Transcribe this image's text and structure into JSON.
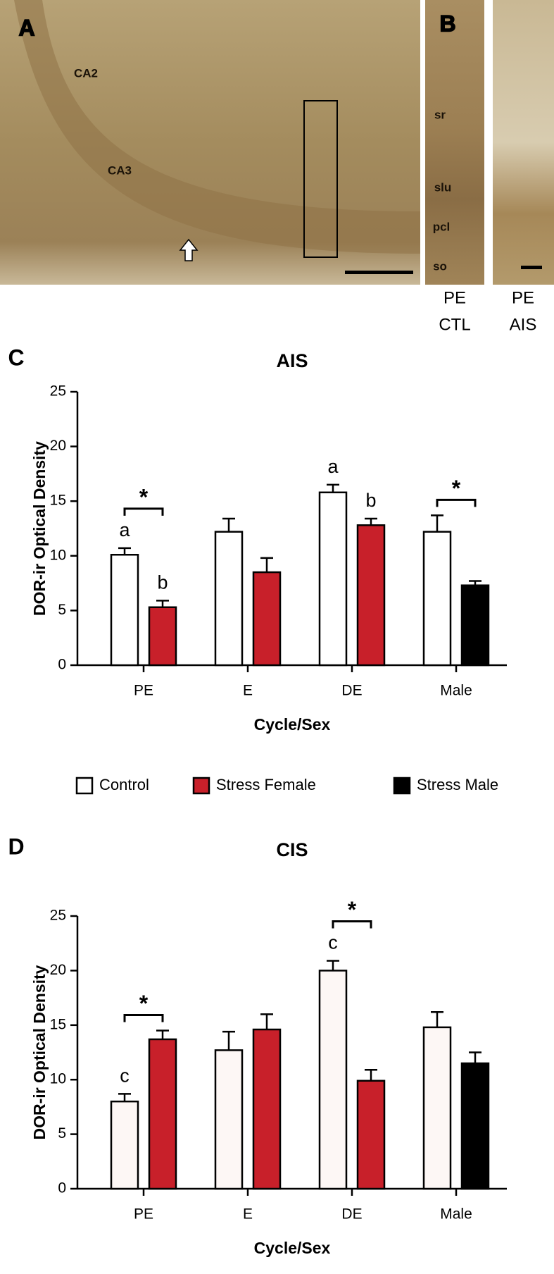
{
  "micrographs": {
    "panel_a": {
      "label": "A",
      "regions": [
        "CA2",
        "CA3"
      ]
    },
    "panel_b": {
      "label": "B",
      "layers": [
        "sr",
        "slu",
        "pcl",
        "so"
      ],
      "captions": [
        [
          "PE",
          "CTL"
        ],
        [
          "PE",
          "AIS"
        ]
      ]
    }
  },
  "chart_data": [
    {
      "type": "bar",
      "panel": "C",
      "title": "AIS",
      "xlabel": "Cycle/Sex",
      "ylabel": "DOR-ir Optical Density",
      "categories": [
        "PE",
        "E",
        "DE",
        "Male"
      ],
      "series": [
        {
          "name": "Control",
          "color": "#ffffff",
          "values": [
            10.1,
            12.2,
            15.8,
            12.2
          ],
          "errors": [
            0.6,
            1.2,
            0.7,
            1.5
          ],
          "annotations": [
            "a",
            null,
            "a",
            null
          ]
        },
        {
          "name": "Stress Female",
          "color": "#c8202a",
          "values": [
            5.3,
            8.5,
            12.8,
            null
          ],
          "errors": [
            0.6,
            1.3,
            0.6,
            null
          ],
          "annotations": [
            "b",
            null,
            "b",
            null
          ]
        },
        {
          "name": "Stress Male",
          "color": "#000000",
          "values": [
            null,
            null,
            null,
            7.3
          ],
          "errors": [
            null,
            null,
            null,
            0.4
          ],
          "annotations": [
            null,
            null,
            null,
            null
          ]
        }
      ],
      "significance": [
        "*",
        null,
        null,
        "*"
      ],
      "ylim": [
        0,
        25
      ],
      "yticks": [
        0,
        5,
        10,
        15,
        20,
        25
      ]
    },
    {
      "type": "bar",
      "panel": "D",
      "title": "CIS",
      "xlabel": "Cycle/Sex",
      "ylabel": "DOR-ir Optical Density",
      "categories": [
        "PE",
        "E",
        "DE",
        "Male"
      ],
      "series": [
        {
          "color": "#fdf7f5",
          "values": [
            8.0,
            12.7,
            20.0,
            14.8
          ],
          "errors": [
            0.7,
            1.7,
            0.9,
            1.4
          ],
          "annotations": [
            "c",
            null,
            "c",
            null
          ]
        },
        {
          "color": "#c8202a",
          "values": [
            13.7,
            14.6,
            9.9,
            null
          ],
          "errors": [
            0.8,
            1.4,
            1.0,
            null
          ],
          "annotations": [
            null,
            null,
            null,
            null
          ]
        },
        {
          "color": "#000000",
          "values": [
            null,
            null,
            null,
            11.5
          ],
          "errors": [
            null,
            null,
            null,
            1.0
          ],
          "annotations": [
            null,
            null,
            null,
            null
          ]
        }
      ],
      "significance": [
        "*",
        null,
        "*",
        null
      ],
      "ylim": [
        0,
        25
      ],
      "yticks": [
        0,
        5,
        10,
        15,
        20,
        25
      ]
    }
  ]
}
